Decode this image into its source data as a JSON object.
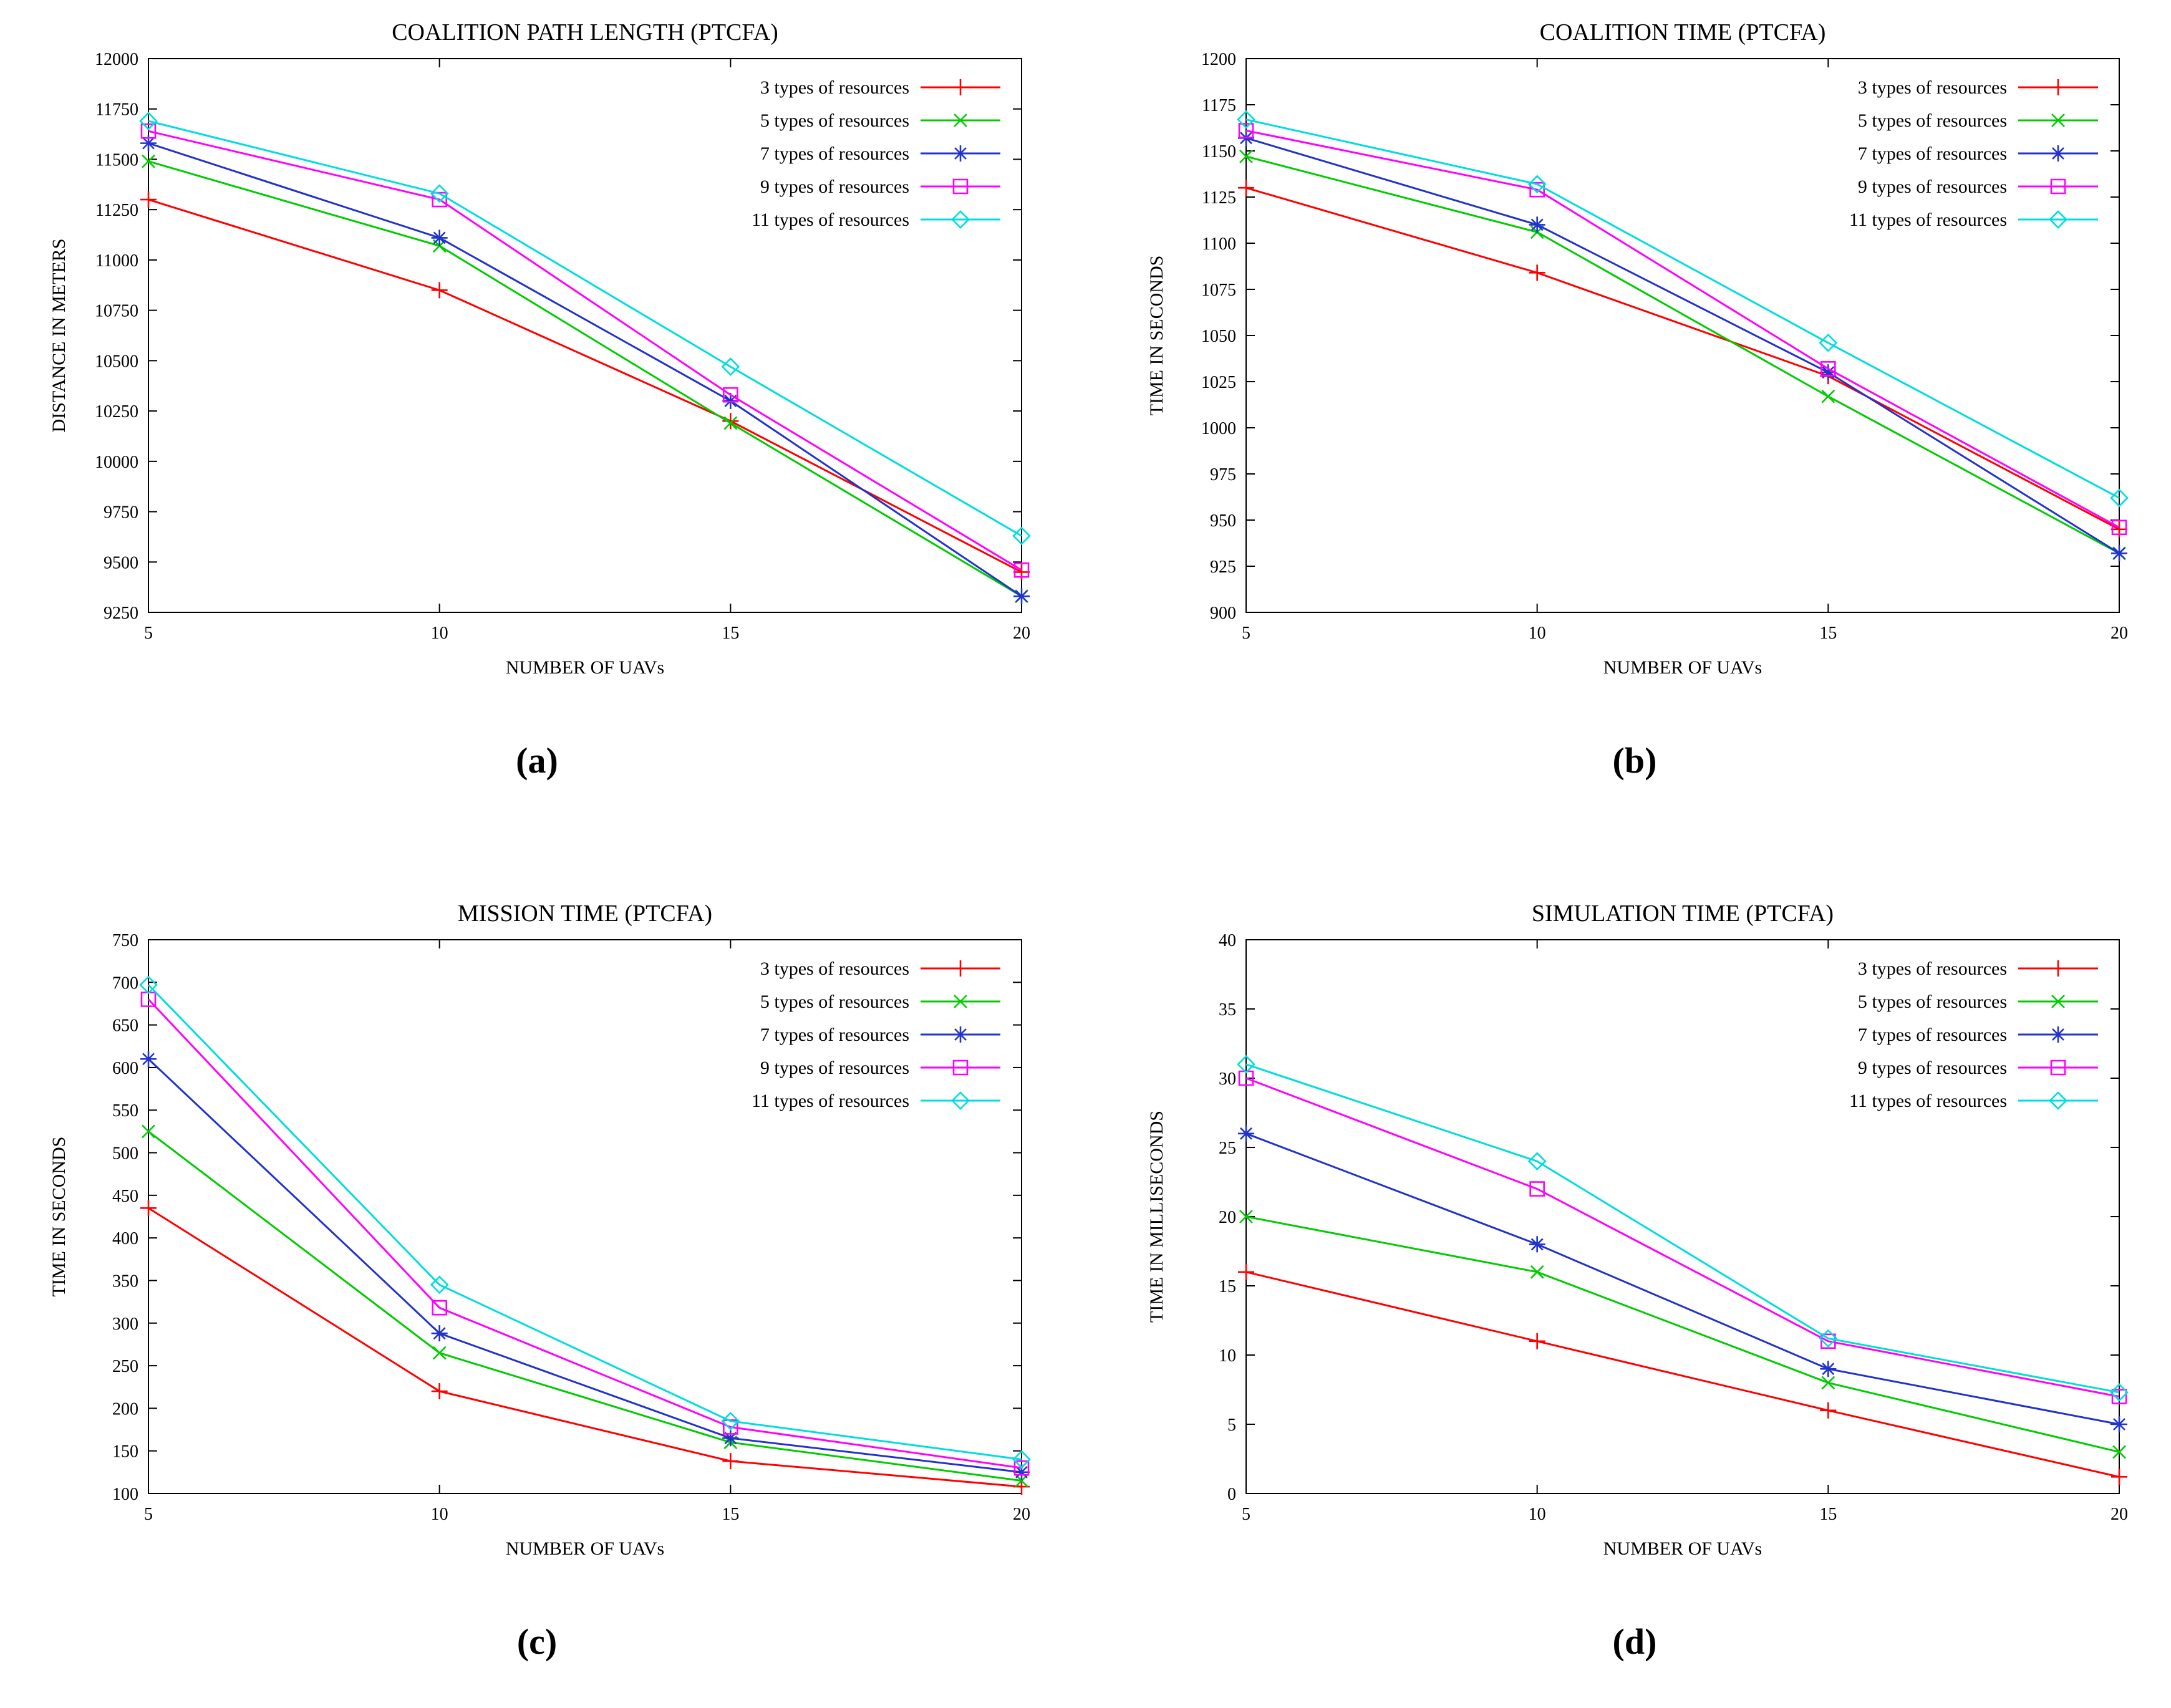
{
  "page": {
    "background": "#ffffff"
  },
  "captions": {
    "a": "(a)",
    "b": "(b)",
    "c": "(c)",
    "d": "(d)"
  },
  "legend_labels": [
    "3 types of resources",
    "5 types of resources",
    "7 types of resources",
    "9 types of resources",
    "11 types of resources"
  ],
  "series_colors": [
    "#ff0000",
    "#00cc00",
    "#2233cc",
    "#ff00ff",
    "#00dddd"
  ],
  "series_markers": [
    "plus",
    "x",
    "asterisk",
    "square",
    "diamond"
  ],
  "chart_data": [
    {
      "type": "line",
      "title": "COALITION PATH LENGTH (PTCFA)",
      "xlabel": "NUMBER OF UAVs",
      "ylabel": "DISTANCE IN METERS",
      "caption": "(a)",
      "x": [
        5,
        10,
        15,
        20
      ],
      "xlim": [
        5,
        20
      ],
      "ylim": [
        9250,
        12000
      ],
      "ytick_step": 250,
      "grid": false,
      "legend_position": "top-right",
      "series": [
        {
          "name": "3 types of resources",
          "color": "#ff0000",
          "marker": "plus",
          "values": [
            11300,
            10850,
            10200,
            9450
          ]
        },
        {
          "name": "5 types of resources",
          "color": "#00cc00",
          "marker": "x",
          "values": [
            11490,
            11070,
            10190,
            9330
          ]
        },
        {
          "name": "7 types of resources",
          "color": "#2233cc",
          "marker": "asterisk",
          "values": [
            11580,
            11110,
            10300,
            9330
          ]
        },
        {
          "name": "9 types of resources",
          "color": "#ff00ff",
          "marker": "square",
          "values": [
            11640,
            11300,
            10330,
            9460
          ]
        },
        {
          "name": "11 types of resources",
          "color": "#00dddd",
          "marker": "diamond",
          "values": [
            11690,
            11330,
            10470,
            9630
          ]
        }
      ]
    },
    {
      "type": "line",
      "title": "COALITION TIME (PTCFA)",
      "xlabel": "NUMBER OF UAVs",
      "ylabel": "TIME IN SECONDS",
      "caption": "(b)",
      "x": [
        5,
        10,
        15,
        20
      ],
      "xlim": [
        5,
        20
      ],
      "ylim": [
        900,
        1200
      ],
      "ytick_step": 25,
      "grid": false,
      "legend_position": "top-right",
      "series": [
        {
          "name": "3 types of resources",
          "color": "#ff0000",
          "marker": "plus",
          "values": [
            1130,
            1084,
            1028,
            945
          ]
        },
        {
          "name": "5 types of resources",
          "color": "#00cc00",
          "marker": "x",
          "values": [
            1147,
            1106,
            1017,
            932
          ]
        },
        {
          "name": "7 types of resources",
          "color": "#2233cc",
          "marker": "asterisk",
          "values": [
            1157,
            1110,
            1030,
            932
          ]
        },
        {
          "name": "9 types of resources",
          "color": "#ff00ff",
          "marker": "square",
          "values": [
            1161,
            1129,
            1032,
            946
          ]
        },
        {
          "name": "11 types of resources",
          "color": "#00dddd",
          "marker": "diamond",
          "values": [
            1167,
            1132,
            1046,
            962
          ]
        }
      ]
    },
    {
      "type": "line",
      "title": "MISSION TIME (PTCFA)",
      "xlabel": "NUMBER OF UAVs",
      "ylabel": "TIME IN SECONDS",
      "caption": "(c)",
      "x": [
        5,
        10,
        15,
        20
      ],
      "xlim": [
        5,
        20
      ],
      "ylim": [
        100,
        750
      ],
      "ytick_step": 50,
      "grid": false,
      "legend_position": "top-right",
      "series": [
        {
          "name": "3 types of resources",
          "color": "#ff0000",
          "marker": "plus",
          "values": [
            435,
            220,
            138,
            108
          ]
        },
        {
          "name": "5 types of resources",
          "color": "#00cc00",
          "marker": "x",
          "values": [
            525,
            265,
            160,
            115
          ]
        },
        {
          "name": "7 types of resources",
          "color": "#2233cc",
          "marker": "asterisk",
          "values": [
            610,
            288,
            165,
            125
          ]
        },
        {
          "name": "9 types of resources",
          "color": "#ff00ff",
          "marker": "square",
          "values": [
            680,
            318,
            178,
            130
          ]
        },
        {
          "name": "11 types of resources",
          "color": "#00dddd",
          "marker": "diamond",
          "values": [
            697,
            345,
            185,
            140
          ]
        }
      ]
    },
    {
      "type": "line",
      "title": "SIMULATION TIME (PTCFA)",
      "xlabel": "NUMBER OF UAVs",
      "ylabel": "TIME IN MILLISECONDS",
      "caption": "(d)",
      "x": [
        5,
        10,
        15,
        20
      ],
      "xlim": [
        5,
        20
      ],
      "ylim": [
        0,
        40
      ],
      "ytick_step": 5,
      "grid": false,
      "legend_position": "top-right",
      "series": [
        {
          "name": "3 types of resources",
          "color": "#ff0000",
          "marker": "plus",
          "values": [
            16,
            11,
            6,
            1.2
          ]
        },
        {
          "name": "5 types of resources",
          "color": "#00cc00",
          "marker": "x",
          "values": [
            20,
            16,
            8,
            3
          ]
        },
        {
          "name": "7 types of resources",
          "color": "#2233cc",
          "marker": "asterisk",
          "values": [
            26,
            18,
            9,
            5
          ]
        },
        {
          "name": "9 types of resources",
          "color": "#ff00ff",
          "marker": "square",
          "values": [
            30,
            22,
            11,
            7
          ]
        },
        {
          "name": "11 types of resources",
          "color": "#00dddd",
          "marker": "diamond",
          "values": [
            31,
            24,
            11.2,
            7.3
          ]
        }
      ]
    }
  ]
}
